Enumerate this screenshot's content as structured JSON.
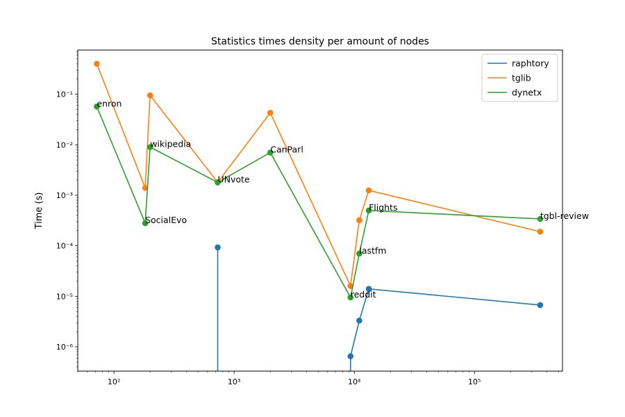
{
  "chart_data": {
    "type": "line",
    "title": "Statistics times density per amount of nodes",
    "xlabel": "",
    "ylabel": "Time (s)",
    "xscale": "log",
    "yscale": "log",
    "xlim": [
      50,
      540000
    ],
    "ylim": [
      3.3e-07,
      0.75
    ],
    "x_ticks": [
      {
        "value": 100,
        "label": "10²"
      },
      {
        "value": 1000,
        "label": "10³"
      },
      {
        "value": 10000,
        "label": "10⁴"
      },
      {
        "value": 100000,
        "label": "10⁵"
      }
    ],
    "y_ticks": [
      {
        "value": 1e-06,
        "label": "10⁻⁶"
      },
      {
        "value": 1e-05,
        "label": "10⁻⁵"
      },
      {
        "value": 0.0001,
        "label": "10⁻⁴"
      },
      {
        "value": 0.001,
        "label": "10⁻³"
      },
      {
        "value": 0.01,
        "label": "10⁻²"
      },
      {
        "value": 0.1,
        "label": "10⁻¹"
      }
    ],
    "grid": false,
    "legend_position": "top-right",
    "series": [
      {
        "name": "raphtory",
        "color": "#1f77b4",
        "points": [
          [
            730,
            9.3e-05
          ],
          [
            730,
            1e-07
          ],
          [
            9300,
            1e-07
          ],
          [
            9300,
            6.5e-07
          ],
          [
            11000,
            3.3e-06
          ],
          [
            13200,
            1.4e-05
          ],
          [
            352000,
            6.7e-06
          ]
        ]
      },
      {
        "name": "tglib",
        "color": "#ff7f0e",
        "points": [
          [
            72,
            0.4
          ],
          [
            182,
            0.0014
          ],
          [
            200,
            0.095
          ],
          [
            730,
            0.0018
          ],
          [
            2000,
            0.043
          ],
          [
            9300,
            1.6e-05
          ],
          [
            11000,
            0.00032
          ],
          [
            13200,
            0.00125
          ],
          [
            352000,
            0.00019
          ]
        ]
      },
      {
        "name": "dynetx",
        "color": "#2ca02c",
        "points": [
          [
            72,
            0.057
          ],
          [
            182,
            0.00028
          ],
          [
            200,
            0.009
          ],
          [
            730,
            0.0018
          ],
          [
            2000,
            0.007
          ],
          [
            9300,
            9.5e-06
          ],
          [
            11000,
            7e-05
          ],
          [
            13200,
            0.0005
          ],
          [
            352000,
            0.00034
          ]
        ]
      }
    ],
    "annotations": [
      {
        "text": "enron",
        "x": 72,
        "y": 0.057
      },
      {
        "text": "SocialEvo",
        "x": 182,
        "y": 0.00028
      },
      {
        "text": "wikipedia",
        "x": 200,
        "y": 0.009
      },
      {
        "text": "UNvote",
        "x": 730,
        "y": 0.0018
      },
      {
        "text": "CanParl",
        "x": 2000,
        "y": 0.007
      },
      {
        "text": "reddit",
        "x": 9300,
        "y": 9.5e-06
      },
      {
        "text": "lastfm",
        "x": 11000,
        "y": 7e-05
      },
      {
        "text": "Flights",
        "x": 13200,
        "y": 0.0005
      },
      {
        "text": "tgbl-review",
        "x": 352000,
        "y": 0.00034
      }
    ]
  }
}
